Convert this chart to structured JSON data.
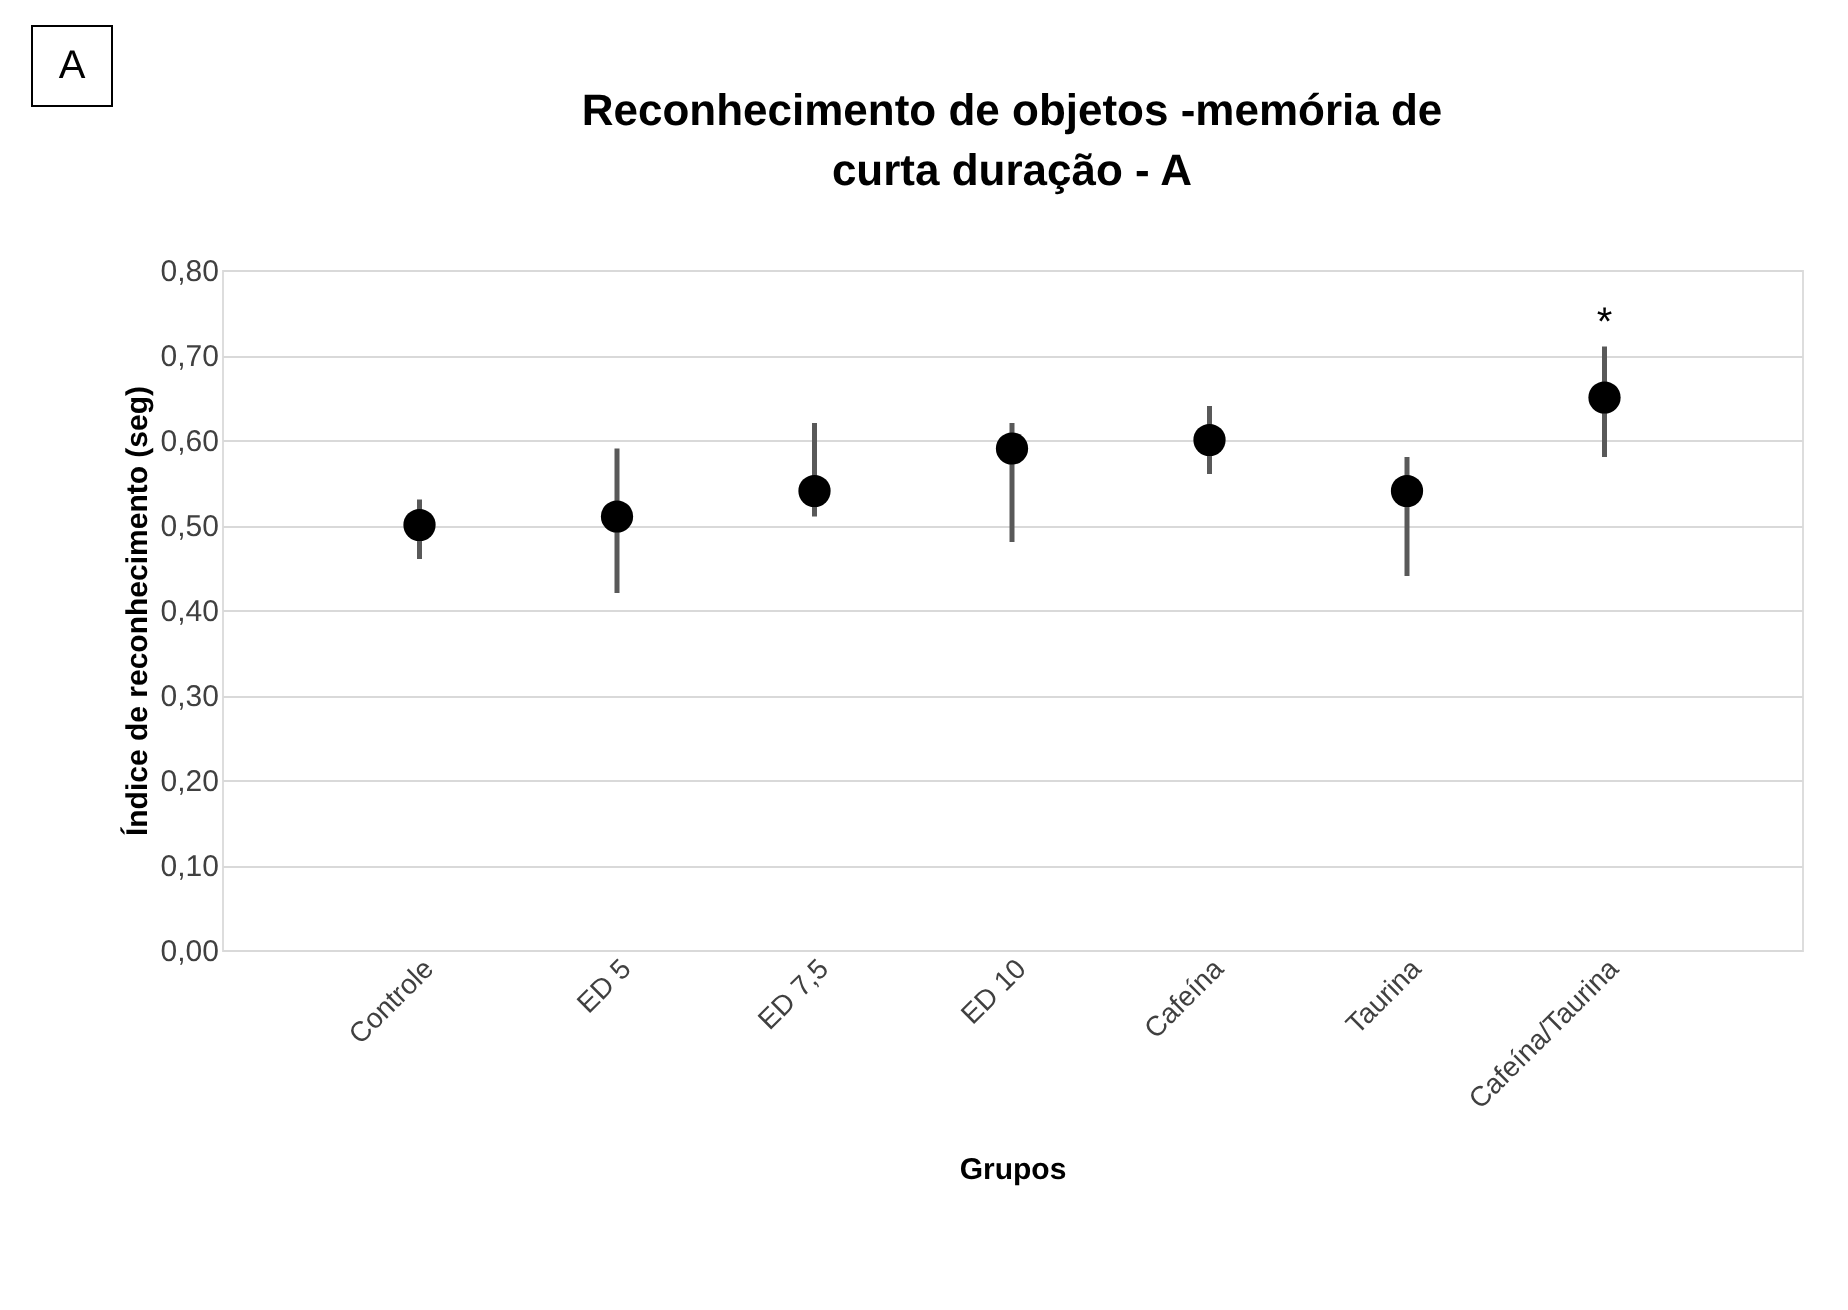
{
  "chart_data": {
    "type": "scatter",
    "title": "Reconhecimento de objetos -memória de curta duração - A",
    "xlabel": "Grupos",
    "ylabel": "Índice de reconhecimento (seg)",
    "categories": [
      "Controle",
      "ED 5",
      "ED 7,5",
      "ED 10",
      "Cafeína",
      "Taurina",
      "Cafeína/Taurina"
    ],
    "series": [
      {
        "color": "#000000",
        "values": [
          0.5,
          0.51,
          0.54,
          0.59,
          0.6,
          0.54,
          0.65
        ],
        "errors": [
          [
            0.46,
            0.53
          ],
          [
            0.42,
            0.59
          ],
          [
            0.51,
            0.62
          ],
          [
            0.48,
            0.62
          ],
          [
            0.56,
            0.64
          ],
          [
            0.44,
            0.58
          ],
          [
            0.58,
            0.71
          ]
        ]
      }
    ],
    "ylim": [
      0,
      0.8
    ],
    "yticks": [
      {
        "value": 0,
        "label": "0,00"
      },
      {
        "value": 0.1,
        "label": "0,10"
      },
      {
        "value": 0.2,
        "label": "0,20"
      },
      {
        "value": 0.3,
        "label": "0,30"
      },
      {
        "value": 0.4,
        "label": "0,40"
      },
      {
        "value": 0.5,
        "label": "0,50"
      },
      {
        "value": 0.6,
        "label": "0,60"
      },
      {
        "value": 0.7,
        "label": "0,70"
      },
      {
        "value": 0.8,
        "label": "0,80"
      }
    ],
    "grid": "y",
    "marker": "circle",
    "annotations": [
      "A",
      {
        "text": "*",
        "x": "Cafeína/Taurina",
        "y": 0.71
      }
    ]
  }
}
